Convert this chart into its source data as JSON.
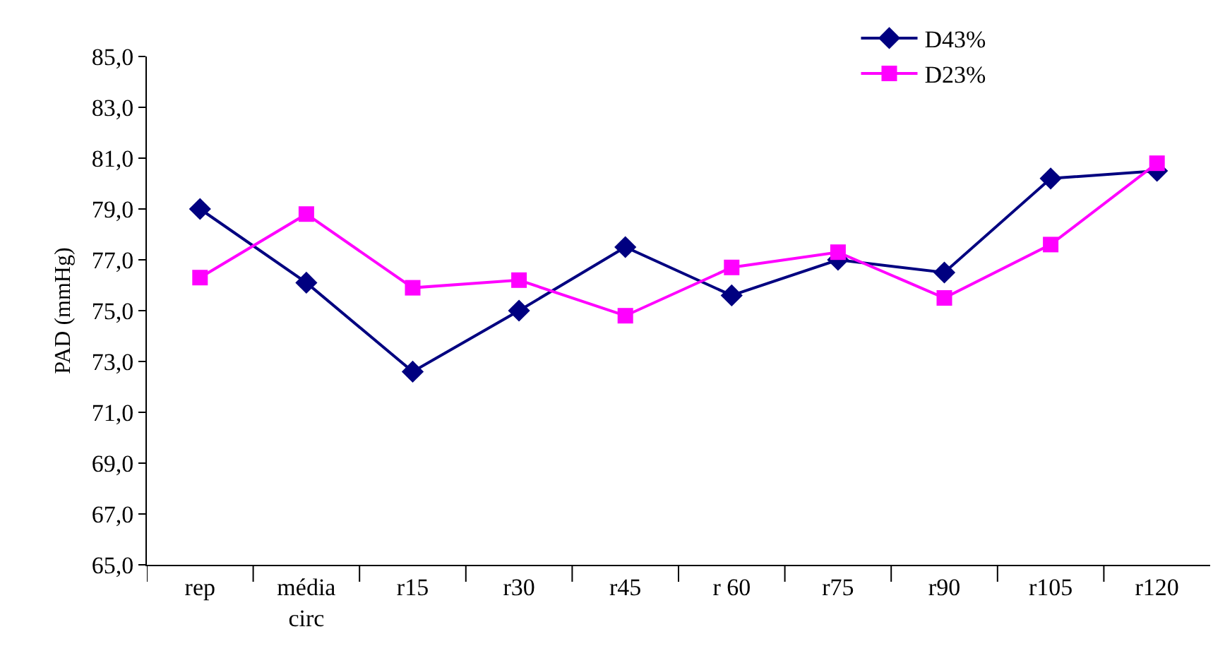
{
  "chart_data": {
    "type": "line",
    "ylabel": "PAD (mmHg)",
    "categories": [
      "rep",
      "média\ncirc",
      "r15",
      "r30",
      "r45",
      "r 60",
      "r75",
      "r90",
      "r105",
      "r120"
    ],
    "series": [
      {
        "name": "D43%",
        "color": "#000080",
        "marker": "diamond",
        "values": [
          79.0,
          76.1,
          72.6,
          75.0,
          77.5,
          75.6,
          77.0,
          76.5,
          80.2,
          80.5
        ]
      },
      {
        "name": "D23%",
        "color": "#ff00ff",
        "marker": "square",
        "values": [
          76.3,
          78.8,
          75.9,
          76.2,
          74.8,
          76.7,
          77.3,
          75.5,
          77.6,
          80.8
        ]
      }
    ],
    "ylim": [
      65,
      85
    ],
    "yticks": [
      {
        "value": 65,
        "label": "65,0"
      },
      {
        "value": 67,
        "label": "67,0"
      },
      {
        "value": 69,
        "label": "69,0"
      },
      {
        "value": 71,
        "label": "71,0"
      },
      {
        "value": 73,
        "label": "73,0"
      },
      {
        "value": 75,
        "label": "75,0"
      },
      {
        "value": 77,
        "label": "77,0"
      },
      {
        "value": 79,
        "label": "79,0"
      },
      {
        "value": 81,
        "label": "81,0"
      },
      {
        "value": 83,
        "label": "83,0"
      },
      {
        "value": 85,
        "label": "85,0"
      }
    ],
    "legend": "top right",
    "line_style": "solid"
  }
}
